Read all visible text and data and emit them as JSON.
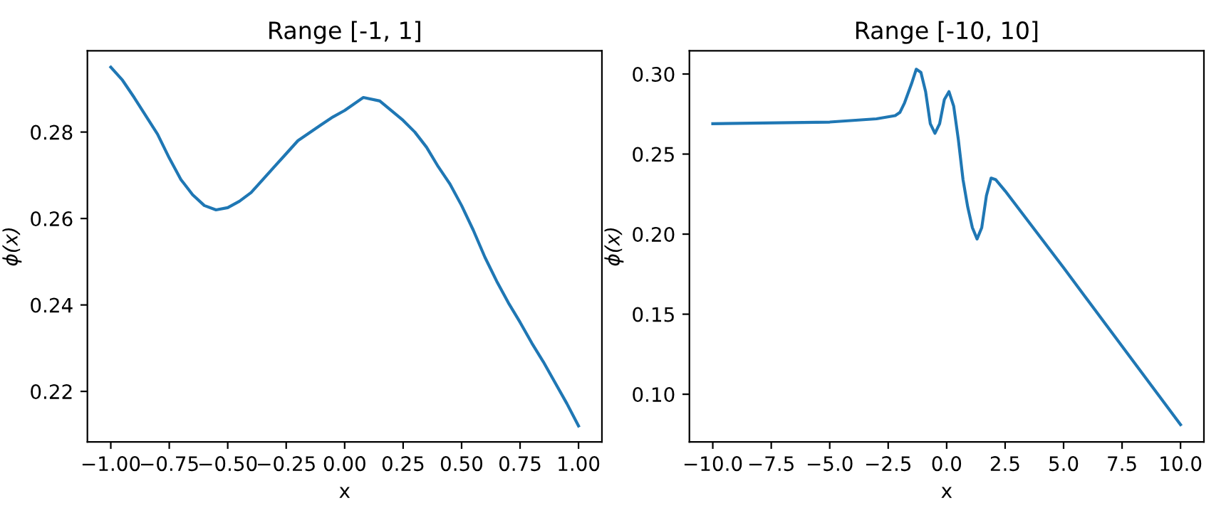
{
  "chart_data": [
    {
      "type": "line",
      "title": "Range [-1, 1]",
      "xlabel": "x",
      "ylabel": "ϕ(x)",
      "x": [
        -1.0,
        -0.95,
        -0.9,
        -0.8,
        -0.75,
        -0.7,
        -0.65,
        -0.6,
        -0.55,
        -0.5,
        -0.45,
        -0.4,
        -0.3,
        -0.25,
        -0.2,
        -0.1,
        -0.05,
        0.0,
        0.08,
        0.15,
        0.25,
        0.3,
        0.35,
        0.4,
        0.45,
        0.5,
        0.55,
        0.6,
        0.65,
        0.7,
        0.75,
        0.8,
        0.85,
        0.9,
        0.95,
        1.0
      ],
      "series": [
        {
          "color": "#1f77b4",
          "values": [
            0.295,
            0.292,
            0.288,
            0.2795,
            0.274,
            0.269,
            0.2655,
            0.263,
            0.262,
            0.2625,
            0.264,
            0.266,
            0.272,
            0.275,
            0.278,
            0.2817,
            0.2835,
            0.285,
            0.288,
            0.2872,
            0.2827,
            0.28,
            0.2765,
            0.272,
            0.268,
            0.263,
            0.2573,
            0.251,
            0.2455,
            0.2405,
            0.236,
            0.2312,
            0.2268,
            0.222,
            0.2172,
            0.212
          ]
        }
      ],
      "xlim": [
        -1.1,
        1.1
      ],
      "ylim": [
        0.2083,
        0.2988
      ],
      "xticks": [
        {
          "value": -1.0,
          "label": "−1.00"
        },
        {
          "value": -0.75,
          "label": "−0.75"
        },
        {
          "value": -0.5,
          "label": "−0.50"
        },
        {
          "value": -0.25,
          "label": "−0.25"
        },
        {
          "value": 0.0,
          "label": "0.00"
        },
        {
          "value": 0.25,
          "label": "0.25"
        },
        {
          "value": 0.5,
          "label": "0.50"
        },
        {
          "value": 0.75,
          "label": "0.75"
        },
        {
          "value": 1.0,
          "label": "1.00"
        }
      ],
      "yticks": [
        0.22,
        0.24,
        0.26,
        0.28
      ],
      "grid": false,
      "legend": false
    },
    {
      "type": "line",
      "title": "Range [-10, 10]",
      "xlabel": "x",
      "ylabel": "ϕ(x)",
      "x": [
        -10,
        -5,
        -3,
        -2.2,
        -2,
        -1.8,
        -1.5,
        -1.3,
        -1.1,
        -0.9,
        -0.7,
        -0.5,
        -0.3,
        -0.1,
        0.1,
        0.3,
        0.5,
        0.7,
        0.9,
        1.1,
        1.3,
        1.5,
        1.7,
        1.9,
        2.1,
        2.5,
        5,
        10
      ],
      "series": [
        {
          "color": "#1f77b4",
          "values": [
            0.269,
            0.27,
            0.272,
            0.274,
            0.276,
            0.282,
            0.294,
            0.303,
            0.301,
            0.289,
            0.269,
            0.263,
            0.269,
            0.284,
            0.289,
            0.28,
            0.259,
            0.234,
            0.217,
            0.204,
            0.197,
            0.204,
            0.224,
            0.235,
            0.234,
            0.227,
            0.179,
            0.081
          ]
        }
      ],
      "xlim": [
        -11,
        11
      ],
      "ylim": [
        0.0702,
        0.3145
      ],
      "xticks": [
        {
          "value": -10,
          "label": "−10.0"
        },
        {
          "value": -7.5,
          "label": "−7.5"
        },
        {
          "value": -5,
          "label": "−5.0"
        },
        {
          "value": -2.5,
          "label": "−2.5"
        },
        {
          "value": 0,
          "label": "0.0"
        },
        {
          "value": 2.5,
          "label": "2.5"
        },
        {
          "value": 5,
          "label": "5.0"
        },
        {
          "value": 7.5,
          "label": "7.5"
        },
        {
          "value": 10,
          "label": "10.0"
        }
      ],
      "yticks": [
        {
          "value": 0.1,
          "label": "0.10"
        },
        {
          "value": 0.15,
          "label": "0.15"
        },
        {
          "value": 0.2,
          "label": "0.20"
        },
        {
          "value": 0.25,
          "label": "0.25"
        },
        {
          "value": 0.3,
          "label": "0.30"
        }
      ],
      "grid": false,
      "legend": false
    }
  ]
}
